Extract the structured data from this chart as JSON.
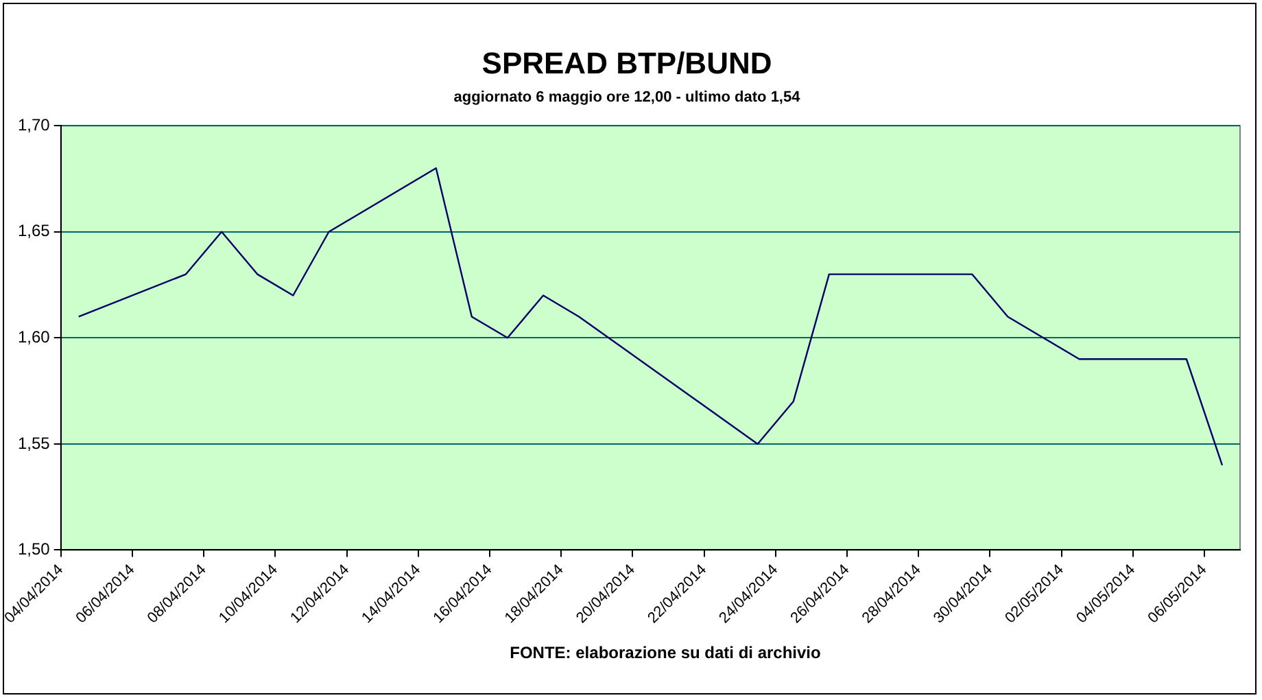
{
  "chart_data": {
    "type": "line",
    "title": "SPREAD BTP/BUND",
    "subtitle": "aggiornato 6 maggio ore 12,00 - ultimo dato 1,54",
    "annotations": [
      "FONTE: elaborazione su dati di archivio"
    ],
    "x": [
      "2014-04-04T12:00",
      "2014-04-07T12:00",
      "2014-04-08T12:00",
      "2014-04-09T12:00",
      "2014-04-10T12:00",
      "2014-04-11T12:00",
      "2014-04-14T12:00",
      "2014-04-15T12:00",
      "2014-04-16T12:00",
      "2014-04-17T12:00",
      "2014-04-18T12:00",
      "2014-04-23T12:00",
      "2014-04-24T12:00",
      "2014-04-25T12:00",
      "2014-04-29T12:00",
      "2014-04-30T12:00",
      "2014-05-02T12:00",
      "2014-05-05T12:00",
      "2014-05-06T12:00"
    ],
    "series": [
      {
        "color": "#000066",
        "values": [
          1.61,
          1.63,
          1.65,
          1.63,
          1.62,
          1.65,
          1.68,
          1.61,
          1.6,
          1.62,
          1.61,
          1.55,
          1.57,
          1.63,
          1.63,
          1.61,
          1.59,
          1.59,
          1.54
        ]
      }
    ],
    "xlim": [
      "2014-04-04",
      "2014-05-07"
    ],
    "xticks": [
      {
        "value": "2014-04-04",
        "label": "04/04/2014"
      },
      {
        "value": "2014-04-06",
        "label": "06/04/2014"
      },
      {
        "value": "2014-04-08",
        "label": "08/04/2014"
      },
      {
        "value": "2014-04-10",
        "label": "10/04/2014"
      },
      {
        "value": "2014-04-12",
        "label": "12/04/2014"
      },
      {
        "value": "2014-04-14",
        "label": "14/04/2014"
      },
      {
        "value": "2014-04-16",
        "label": "16/04/2014"
      },
      {
        "value": "2014-04-18",
        "label": "18/04/2014"
      },
      {
        "value": "2014-04-20",
        "label": "20/04/2014"
      },
      {
        "value": "2014-04-22",
        "label": "22/04/2014"
      },
      {
        "value": "2014-04-24",
        "label": "24/04/2014"
      },
      {
        "value": "2014-04-26",
        "label": "26/04/2014"
      },
      {
        "value": "2014-04-28",
        "label": "28/04/2014"
      },
      {
        "value": "2014-04-30",
        "label": "30/04/2014"
      },
      {
        "value": "2014-05-02",
        "label": "02/05/2014"
      },
      {
        "value": "2014-05-04",
        "label": "04/05/2014"
      },
      {
        "value": "2014-05-06",
        "label": "06/05/2014"
      }
    ],
    "ylim": [
      1.5,
      1.7
    ],
    "yticks": [
      {
        "value": 1.5,
        "label": "1,50"
      },
      {
        "value": 1.55,
        "label": "1,55"
      },
      {
        "value": 1.6,
        "label": "1,60"
      },
      {
        "value": 1.65,
        "label": "1,65"
      },
      {
        "value": 1.7,
        "label": "1,70"
      }
    ],
    "grid": "y",
    "legend": false,
    "marker": "none",
    "line_style": "solid"
  }
}
